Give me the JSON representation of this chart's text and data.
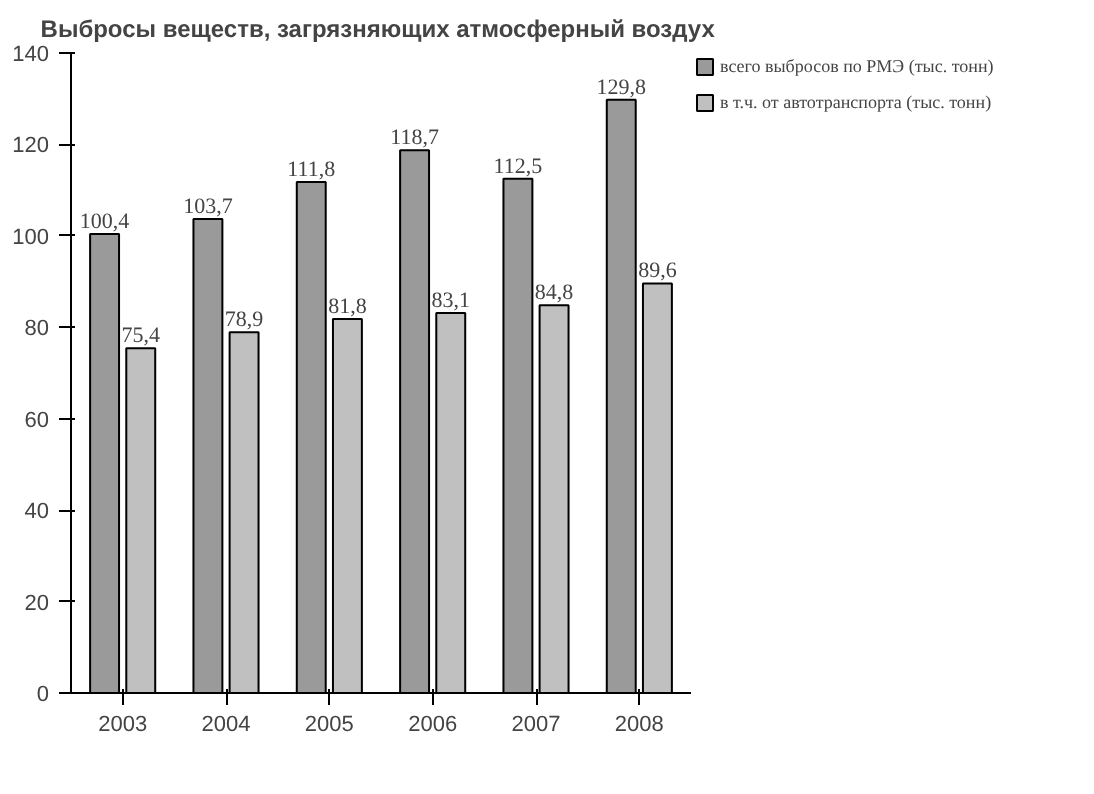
{
  "chart_data": {
    "type": "bar",
    "title": "Выбросы  веществ, загрязняющих атмосферный воздух",
    "categories": [
      "2003",
      "2004",
      "2005",
      "2006",
      "2007",
      "2008"
    ],
    "series": [
      {
        "name": "всего выбросов по РМЭ (тыс. тонн)",
        "color": "#9a9a9a",
        "values": [
          100.4,
          103.7,
          111.8,
          118.7,
          112.5,
          129.8
        ],
        "value_labels": [
          "100,4",
          "103,7",
          "111,8",
          "118,7",
          "112,5",
          "129,8"
        ]
      },
      {
        "name": "в т.ч. от автотранспорта (тыс. тонн)",
        "color": "#c0c0c0",
        "values": [
          75.4,
          78.9,
          81.8,
          83.1,
          84.8,
          89.6
        ],
        "value_labels": [
          "75,4",
          "78,9",
          "81,8",
          "83,1",
          "84,8",
          "89,6"
        ]
      }
    ],
    "ylim": [
      0,
      140
    ],
    "yticks": [
      0,
      20,
      40,
      60,
      80,
      100,
      120,
      140
    ],
    "grid": false,
    "legend": "top right"
  }
}
